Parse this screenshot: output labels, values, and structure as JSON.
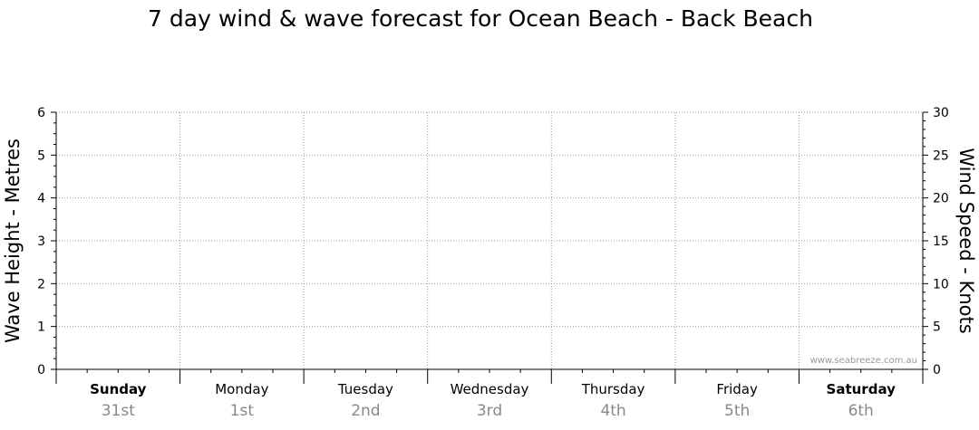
{
  "chart_data": {
    "type": "line",
    "title": "7 day wind & wave forecast for Ocean Beach - Back Beach",
    "ylabel_left": "Wave Height - Metres",
    "ylabel_right": "Wind Speed - Knots",
    "ylim_left": [
      0,
      6
    ],
    "ylim_right": [
      0,
      30
    ],
    "yticks_left": [
      "0",
      "1",
      "2",
      "3",
      "4",
      "5",
      "6"
    ],
    "yticks_right": [
      "0",
      "5",
      "10",
      "15",
      "20",
      "25",
      "30"
    ],
    "grid": true,
    "days": [
      {
        "day": "Sunday",
        "date": "31st",
        "bold": true
      },
      {
        "day": "Monday",
        "date": "1st",
        "bold": false
      },
      {
        "day": "Tuesday",
        "date": "2nd",
        "bold": false
      },
      {
        "day": "Wednesday",
        "date": "3rd",
        "bold": false
      },
      {
        "day": "Thursday",
        "date": "4th",
        "bold": false
      },
      {
        "day": "Friday",
        "date": "5th",
        "bold": false
      },
      {
        "day": "Saturday",
        "date": "6th",
        "bold": true
      }
    ],
    "series": [],
    "watermark": "www.seabreeze.com.au"
  }
}
